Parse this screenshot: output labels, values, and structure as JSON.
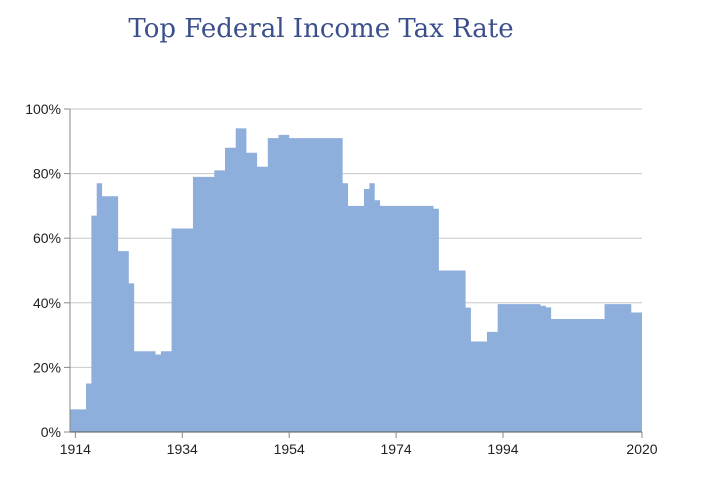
{
  "chart_data": {
    "type": "area",
    "title": "Top Federal Income Tax Rate",
    "xlabel": "",
    "ylabel": "",
    "xlim": [
      1913,
      2020
    ],
    "ylim": [
      0,
      100
    ],
    "x_ticks": [
      1914,
      1934,
      1954,
      1974,
      1994,
      2020
    ],
    "y_ticks": [
      {
        "value": 0,
        "label": "0%"
      },
      {
        "value": 20,
        "label": "20%"
      },
      {
        "value": 40,
        "label": "40%"
      },
      {
        "value": 60,
        "label": "60%"
      },
      {
        "value": 80,
        "label": "80%"
      },
      {
        "value": 100,
        "label": "100%"
      }
    ],
    "grid": "horizontal",
    "legend": "none",
    "fill_color": "#8eaedb",
    "series": [
      {
        "x": [
          1913,
          1914,
          1915,
          1916,
          1917,
          1918,
          1919,
          1920,
          1921,
          1922,
          1923,
          1924,
          1925,
          1926,
          1927,
          1928,
          1929,
          1930,
          1931,
          1932,
          1933,
          1934,
          1935,
          1936,
          1937,
          1938,
          1939,
          1940,
          1941,
          1942,
          1943,
          1944,
          1945,
          1946,
          1947,
          1948,
          1949,
          1950,
          1951,
          1952,
          1953,
          1954,
          1955,
          1956,
          1957,
          1958,
          1959,
          1960,
          1961,
          1962,
          1963,
          1964,
          1965,
          1966,
          1967,
          1968,
          1969,
          1970,
          1971,
          1972,
          1973,
          1974,
          1975,
          1976,
          1977,
          1978,
          1979,
          1980,
          1981,
          1982,
          1983,
          1984,
          1985,
          1986,
          1987,
          1988,
          1989,
          1990,
          1991,
          1992,
          1993,
          1994,
          1995,
          1996,
          1997,
          1998,
          1999,
          2000,
          2001,
          2002,
          2003,
          2004,
          2005,
          2006,
          2007,
          2008,
          2009,
          2010,
          2011,
          2012,
          2013,
          2014,
          2015,
          2016,
          2017,
          2018,
          2019
        ],
        "values": [
          7,
          7,
          7,
          15,
          67,
          77,
          73,
          73,
          73,
          56,
          56,
          46,
          25,
          25,
          25,
          25,
          24,
          25,
          25,
          63,
          63,
          63,
          63,
          79,
          79,
          79,
          79,
          81,
          81,
          88,
          88,
          94,
          94,
          86.45,
          86.45,
          82.13,
          82.13,
          91,
          91,
          92,
          92,
          91,
          91,
          91,
          91,
          91,
          91,
          91,
          91,
          91,
          91,
          77,
          70,
          70,
          70,
          75.25,
          77,
          71.75,
          70,
          70,
          70,
          70,
          70,
          70,
          70,
          70,
          70,
          70,
          69.13,
          50,
          50,
          50,
          50,
          50,
          38.5,
          28,
          28,
          28,
          31,
          31,
          39.6,
          39.6,
          39.6,
          39.6,
          39.6,
          39.6,
          39.6,
          39.6,
          39.1,
          38.6,
          35,
          35,
          35,
          35,
          35,
          35,
          35,
          35,
          35,
          35,
          39.6,
          39.6,
          39.6,
          39.6,
          39.6,
          37,
          37
        ]
      }
    ]
  }
}
